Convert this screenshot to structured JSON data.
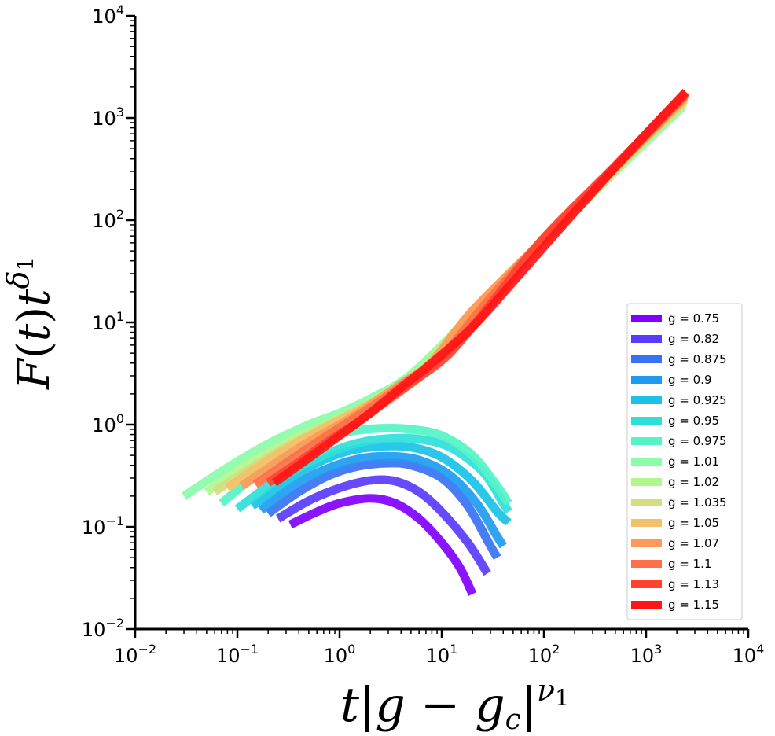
{
  "chart_data": {
    "type": "line",
    "title": "",
    "xlabel": "t|g − g_c|^ν1",
    "ylabel": "F(t)t^δ1",
    "xlabel_parts": {
      "t": "t",
      "bar": "|",
      "g": "g",
      "minus": " − ",
      "gc": "g",
      "c": "c",
      "nu": "ν",
      "one": "1"
    },
    "ylabel_parts": {
      "F": "F",
      "open": "(",
      "t": "t",
      "close": ")",
      "t2": "t",
      "delta": "δ",
      "one": "1"
    },
    "xscale": "log",
    "yscale": "log",
    "xlim": [
      0.01,
      10000
    ],
    "ylim": [
      0.01,
      10000
    ],
    "x_ticks": [
      {
        "base": "10",
        "exp": "−2"
      },
      {
        "base": "10",
        "exp": "−1"
      },
      {
        "base": "10",
        "exp": "0"
      },
      {
        "base": "10",
        "exp": "1"
      },
      {
        "base": "10",
        "exp": "2"
      },
      {
        "base": "10",
        "exp": "3"
      },
      {
        "base": "10",
        "exp": "4"
      }
    ],
    "y_ticks": [
      {
        "base": "10",
        "exp": "−2"
      },
      {
        "base": "10",
        "exp": "−1"
      },
      {
        "base": "10",
        "exp": "0"
      },
      {
        "base": "10",
        "exp": "1"
      },
      {
        "base": "10",
        "exp": "2"
      },
      {
        "base": "10",
        "exp": "3"
      },
      {
        "base": "10",
        "exp": "4"
      }
    ],
    "grid": false,
    "legend_position": "lower-right",
    "series": [
      {
        "name": "g = 0.75",
        "color": "#8000ff",
        "x": [
          0.33,
          0.6,
          1.0,
          2.0,
          3.5,
          6.0,
          10.0,
          15.0,
          20.0
        ],
        "y": [
          0.105,
          0.14,
          0.17,
          0.19,
          0.17,
          0.12,
          0.07,
          0.04,
          0.022
        ]
      },
      {
        "name": "g = 0.82",
        "color": "#5a3bfd",
        "x": [
          0.25,
          0.5,
          1.0,
          2.0,
          3.5,
          6.0,
          10.0,
          18.0,
          28.0
        ],
        "y": [
          0.12,
          0.18,
          0.24,
          0.285,
          0.28,
          0.22,
          0.14,
          0.07,
          0.035
        ]
      },
      {
        "name": "g = 0.875",
        "color": "#3872f4",
        "x": [
          0.2,
          0.4,
          0.8,
          1.5,
          3.0,
          5.0,
          10.0,
          18.0,
          30.0,
          35.0
        ],
        "y": [
          0.135,
          0.22,
          0.32,
          0.39,
          0.42,
          0.4,
          0.3,
          0.16,
          0.065,
          0.05
        ]
      },
      {
        "name": "g = 0.9",
        "color": "#1e9bf0",
        "x": [
          0.17,
          0.35,
          0.7,
          1.5,
          3.0,
          6.0,
          12.0,
          22.0,
          35.0,
          40.0
        ],
        "y": [
          0.145,
          0.25,
          0.36,
          0.46,
          0.49,
          0.45,
          0.32,
          0.17,
          0.08,
          0.065
        ]
      },
      {
        "name": "g = 0.925",
        "color": "#19c2e6",
        "x": [
          0.14,
          0.3,
          0.6,
          1.2,
          2.5,
          5.0,
          10.0,
          20.0,
          35.0,
          45.0
        ],
        "y": [
          0.16,
          0.28,
          0.42,
          0.55,
          0.61,
          0.6,
          0.48,
          0.28,
          0.14,
          0.11
        ]
      },
      {
        "name": "g = 0.95",
        "color": "#2fe0d9",
        "x": [
          0.1,
          0.2,
          0.4,
          0.8,
          1.5,
          3.0,
          6.0,
          12.0,
          25.0,
          40.0,
          45.0
        ],
        "y": [
          0.15,
          0.25,
          0.38,
          0.53,
          0.66,
          0.73,
          0.72,
          0.6,
          0.35,
          0.17,
          0.14
        ]
      },
      {
        "name": "g = 0.975",
        "color": "#55f4c8",
        "x": [
          0.07,
          0.15,
          0.3,
          0.6,
          1.2,
          2.5,
          5.0,
          10.0,
          20.0,
          35.0,
          45.0
        ],
        "y": [
          0.17,
          0.32,
          0.5,
          0.7,
          0.85,
          0.92,
          0.9,
          0.78,
          0.5,
          0.25,
          0.17
        ]
      },
      {
        "name": "g = 1.01",
        "color": "#8bfca9",
        "x": [
          0.03,
          0.08,
          0.2,
          0.5,
          1.0,
          2.0,
          5.0,
          20.0,
          100.0,
          500.0,
          2300.0
        ],
        "y": [
          0.2,
          0.38,
          0.65,
          1.0,
          1.3,
          1.8,
          3.1,
          12.0,
          60.0,
          300.0,
          1300.0
        ]
      },
      {
        "name": "g = 1.02",
        "color": "#b2f68e",
        "x": [
          0.05,
          0.12,
          0.3,
          0.7,
          1.5,
          3.0,
          6.0,
          20.0,
          100.0,
          500.0,
          2350.0
        ],
        "y": [
          0.22,
          0.4,
          0.67,
          1.0,
          1.4,
          2.1,
          3.4,
          12.5,
          62.0,
          310.0,
          1400.0
        ]
      },
      {
        "name": "g = 1.035",
        "color": "#d4dd80",
        "x": [
          0.06,
          0.15,
          0.35,
          0.8,
          1.7,
          3.5,
          7.0,
          20.0,
          100.0,
          500.0,
          2350.0
        ],
        "y": [
          0.22,
          0.4,
          0.66,
          1.0,
          1.45,
          2.2,
          3.6,
          12.5,
          63.0,
          320.0,
          1450.0
        ]
      },
      {
        "name": "g = 1.05",
        "color": "#f4c06a",
        "x": [
          0.08,
          0.18,
          0.4,
          0.9,
          2.0,
          4.0,
          8.0,
          20.0,
          100.0,
          500.0,
          2380.0
        ],
        "y": [
          0.24,
          0.42,
          0.68,
          1.05,
          1.6,
          2.5,
          4.0,
          12.8,
          64.0,
          325.0,
          1500.0
        ]
      },
      {
        "name": "g = 1.07",
        "color": "#fe9b58",
        "x": [
          0.11,
          0.22,
          0.5,
          1.0,
          2.0,
          4.0,
          8.0,
          20.0,
          100.0,
          500.0,
          2400.0
        ],
        "y": [
          0.25,
          0.4,
          0.68,
          1.0,
          1.55,
          2.5,
          4.1,
          13.0,
          65.0,
          330.0,
          1600.0
        ]
      },
      {
        "name": "g = 1.1",
        "color": "#ff7048",
        "x": [
          0.15,
          0.3,
          0.6,
          1.2,
          2.5,
          5.0,
          10.0,
          25.0,
          100.0,
          500.0,
          2400.0
        ],
        "y": [
          0.26,
          0.42,
          0.67,
          1.05,
          1.7,
          2.8,
          4.6,
          14.0,
          66.0,
          335.0,
          1650.0
        ]
      },
      {
        "name": "g = 1.13",
        "color": "#ff4230",
        "x": [
          0.2,
          0.4,
          0.8,
          1.5,
          3.0,
          6.0,
          12.0,
          30.0,
          100.0,
          500.0,
          2450.0
        ],
        "y": [
          0.27,
          0.43,
          0.7,
          1.05,
          1.75,
          2.9,
          5.0,
          15.0,
          67.0,
          340.0,
          1750.0
        ]
      },
      {
        "name": "g = 1.15",
        "color": "#ff1616",
        "x": [
          0.23,
          0.5,
          1.0,
          2.0,
          4.0,
          8.0,
          20.0,
          50.0,
          200.0,
          800.0,
          2450.0
        ],
        "y": [
          0.27,
          0.47,
          0.78,
          1.3,
          2.3,
          4.0,
          9.0,
          25.0,
          120.0,
          550.0,
          1800.0
        ]
      }
    ]
  }
}
